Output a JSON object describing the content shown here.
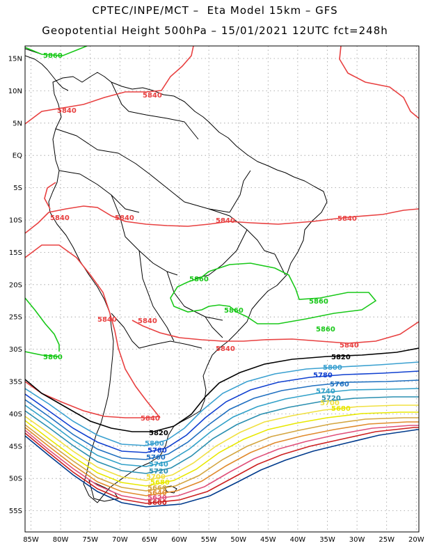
{
  "header": {
    "line1": "CPTEC/INPE/MCT –  Eta Model 15km – GFS",
    "line2": "Geopotential Height 500hPa – 15/01/2021 12UTC fct=248h"
  },
  "axes": {
    "lat_labels": [
      "15N",
      "10N",
      "5N",
      "EQ",
      "5S",
      "10S",
      "15S",
      "20S",
      "25S",
      "30S",
      "35S",
      "40S",
      "45S",
      "50S",
      "55S"
    ],
    "lon_labels": [
      "85W",
      "80W",
      "75W",
      "70W",
      "65W",
      "60W",
      "55W",
      "50W",
      "45W",
      "40W",
      "35W",
      "30W",
      "25W",
      "20W"
    ]
  },
  "contours": {
    "colors": {
      "5580": "#003a8c",
      "5600": "#cc2020",
      "5620": "#e0507a",
      "5640": "#e08a2c",
      "5660": "#d4a640",
      "5680": "#e8e800",
      "5700": "#f0e040",
      "5720": "#2a8fb0",
      "5740": "#30a0c8",
      "5760": "#2070c0",
      "5780": "#1040d0",
      "5800": "#3aa0d0",
      "5820": "#000000",
      "5840": "#e84040",
      "5860": "#18c818"
    },
    "labels": {
      "l5860_nw": "5860",
      "l5840_n1": "5840",
      "l5840_n2": "5840",
      "l5840_10s_a": "5840",
      "l5840_10s_b": "5840",
      "l5840_10s_c": "5840",
      "l5840_10s_d": "5840",
      "l5860_c1": "5860",
      "l5860_c2": "5860",
      "l5860_e1": "5860",
      "l5860_e2": "5860",
      "l5840_25s_a": "5840",
      "l5840_25s_b": "5840",
      "l5840_28s_c": "5840",
      "l5840_28s_d": "5840",
      "l5860_w": "5860",
      "l5820_e": "5820",
      "l5800_e": "5800",
      "l5780_e": "5780",
      "l5760_e": "5760",
      "l5740_e": "5740",
      "l5720_e": "5720",
      "l5700_e": "5700",
      "l5680_e": "5680",
      "l5840_s": "5840",
      "l5820_s": "5820",
      "l5800_s": "5800",
      "l5780_s": "5780",
      "l5760_s": "5760",
      "l5740_s": "5740",
      "l5720_s": "5720",
      "l5700_s": "5700",
      "l5680_s": "5680",
      "l5660_s": "5660",
      "l5640_s": "5640",
      "l5620_s": "5620",
      "l5600_s": "5600"
    }
  }
}
